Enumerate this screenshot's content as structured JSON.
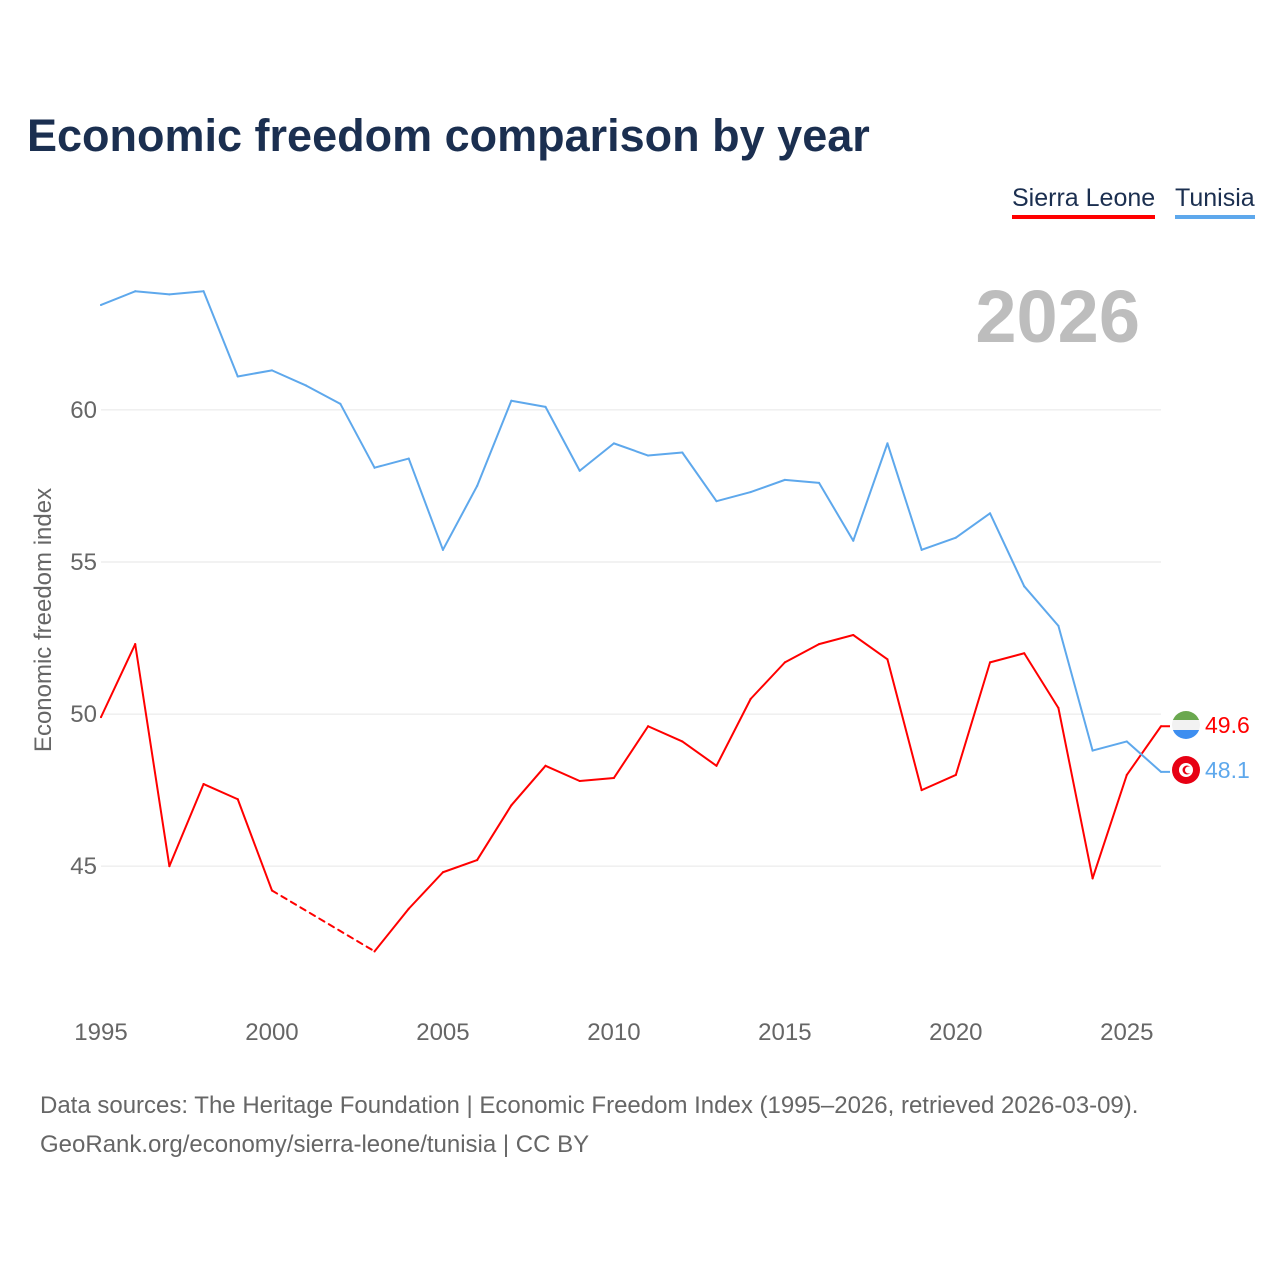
{
  "title": "Economic freedom comparison by year",
  "legend": [
    {
      "label": "Sierra Leone",
      "color": "#ff0000"
    },
    {
      "label": "Tunisia",
      "color": "#5ea8ec"
    }
  ],
  "year_label": "2026",
  "footer": {
    "line1": "Data sources: The Heritage Foundation | Economic Freedom Index (1995–2026, retrieved 2026-03-09).",
    "line2": "GeoRank.org/economy/sierra-leone/tunisia | CC BY"
  },
  "chart_data": {
    "type": "line",
    "title": "Economic freedom comparison by year",
    "xlabel": "",
    "ylabel": "Economic freedom index",
    "xlim": [
      1995,
      2026
    ],
    "ylim": [
      40.6,
      64.6
    ],
    "xticks": [
      1995,
      2000,
      2005,
      2010,
      2015,
      2020,
      2025
    ],
    "yticks": [
      45,
      50,
      55,
      60
    ],
    "grid": true,
    "legend_position": "top-right",
    "x": [
      1995,
      1996,
      1997,
      1998,
      1999,
      2000,
      2001,
      2002,
      2003,
      2004,
      2005,
      2006,
      2007,
      2008,
      2009,
      2010,
      2011,
      2012,
      2013,
      2014,
      2015,
      2016,
      2017,
      2018,
      2019,
      2020,
      2021,
      2022,
      2023,
      2024,
      2025,
      2026
    ],
    "series": [
      {
        "name": "Sierra Leone",
        "color": "#ff0000",
        "end_label": "49.6",
        "values": [
          49.9,
          52.3,
          45.0,
          47.7,
          47.2,
          44.2,
          null,
          null,
          42.2,
          43.6,
          44.8,
          45.2,
          47.0,
          48.3,
          47.8,
          47.9,
          49.6,
          49.1,
          48.3,
          50.5,
          51.7,
          52.3,
          52.6,
          51.8,
          47.5,
          48.0,
          51.7,
          52.0,
          50.2,
          44.6,
          48.0,
          49.6
        ]
      },
      {
        "name": "Tunisia",
        "color": "#5ea8ec",
        "end_label": "48.1",
        "values": [
          63.45,
          63.9,
          63.8,
          63.9,
          61.1,
          61.3,
          60.8,
          60.2,
          58.1,
          58.4,
          55.4,
          57.5,
          60.3,
          60.1,
          58.0,
          58.9,
          58.5,
          58.6,
          57.0,
          57.3,
          57.7,
          57.6,
          55.7,
          58.9,
          55.4,
          55.8,
          56.6,
          54.2,
          52.9,
          48.8,
          49.1,
          48.1
        ]
      }
    ]
  }
}
